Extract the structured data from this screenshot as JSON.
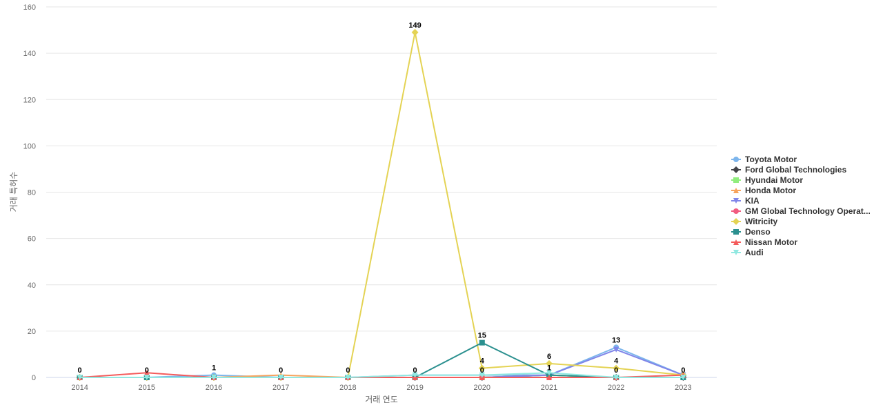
{
  "chart_data": {
    "type": "line",
    "xlabel": "거래 연도",
    "ylabel": "거래 특허수",
    "ylim": [
      0,
      160
    ],
    "y_ticks": [
      0,
      20,
      40,
      60,
      80,
      100,
      120,
      140,
      160
    ],
    "grid": true,
    "legend_position": "right",
    "categories": [
      "2014",
      "2015",
      "2016",
      "2017",
      "2018",
      "2019",
      "2020",
      "2021",
      "2022",
      "2023"
    ],
    "series": [
      {
        "name": "Toyota Motor",
        "color": "#7cb5ec",
        "marker": "circle",
        "values": [
          0,
          0,
          1,
          0,
          0,
          1,
          1,
          1,
          13,
          1
        ]
      },
      {
        "name": "Ford Global Technologies",
        "color": "#434348",
        "marker": "diamond",
        "values": [
          0,
          0,
          0,
          0,
          0,
          0,
          0,
          1,
          0,
          0
        ]
      },
      {
        "name": "Hyundai Motor",
        "color": "#90ed7d",
        "marker": "square",
        "values": [
          0,
          0,
          0,
          0,
          0,
          0,
          0,
          1,
          0,
          0
        ]
      },
      {
        "name": "Honda Motor",
        "color": "#f7a35c",
        "marker": "triangle",
        "values": [
          0,
          0,
          0,
          1,
          0,
          0,
          0,
          0,
          0,
          0
        ]
      },
      {
        "name": "KIA",
        "color": "#8085e9",
        "marker": "triangle-down",
        "values": [
          0,
          0,
          0,
          0,
          0,
          0,
          0,
          1,
          12,
          1
        ]
      },
      {
        "name": "GM Global Technology Operat...",
        "color": "#f15c80",
        "marker": "circle",
        "values": [
          0,
          0,
          0,
          0,
          0,
          0,
          0,
          0,
          0,
          0
        ]
      },
      {
        "name": "Witricity",
        "color": "#e4d354",
        "marker": "diamond",
        "values": [
          0,
          0,
          0,
          0,
          0,
          149,
          4,
          6,
          4,
          1
        ]
      },
      {
        "name": "Denso",
        "color": "#2b908f",
        "marker": "square",
        "values": [
          0,
          0,
          0,
          0,
          0,
          0,
          15,
          1,
          0,
          0
        ]
      },
      {
        "name": "Nissan Motor",
        "color": "#f45b5b",
        "marker": "triangle",
        "values": [
          0,
          2,
          0,
          0,
          0,
          0,
          0,
          0,
          0,
          1
        ]
      },
      {
        "name": "Audi",
        "color": "#91e8e1",
        "marker": "triangle-down",
        "values": [
          0,
          0,
          0,
          0,
          0,
          1,
          1,
          2,
          0,
          0
        ]
      }
    ],
    "data_labels": [
      {
        "category": "2014",
        "text": "0",
        "value": 0
      },
      {
        "category": "2015",
        "text": "0",
        "value": 0
      },
      {
        "category": "2016",
        "text": "1",
        "value": 1
      },
      {
        "category": "2017",
        "text": "0",
        "value": 0
      },
      {
        "category": "2018",
        "text": "0",
        "value": 0
      },
      {
        "category": "2019",
        "text": "149",
        "value": 149
      },
      {
        "category": "2019",
        "text": "0",
        "value": 0
      },
      {
        "category": "2020",
        "text": "15",
        "value": 15
      },
      {
        "category": "2020",
        "text": "4",
        "value": 4
      },
      {
        "category": "2020",
        "text": "0",
        "value": 0
      },
      {
        "category": "2021",
        "text": "6",
        "value": 6
      },
      {
        "category": "2021",
        "text": "1",
        "value": 1
      },
      {
        "category": "2022",
        "text": "13",
        "value": 13
      },
      {
        "category": "2022",
        "text": "4",
        "value": 4
      },
      {
        "category": "2022",
        "text": "0",
        "value": 0
      },
      {
        "category": "2023",
        "text": "0",
        "value": 0
      }
    ]
  }
}
